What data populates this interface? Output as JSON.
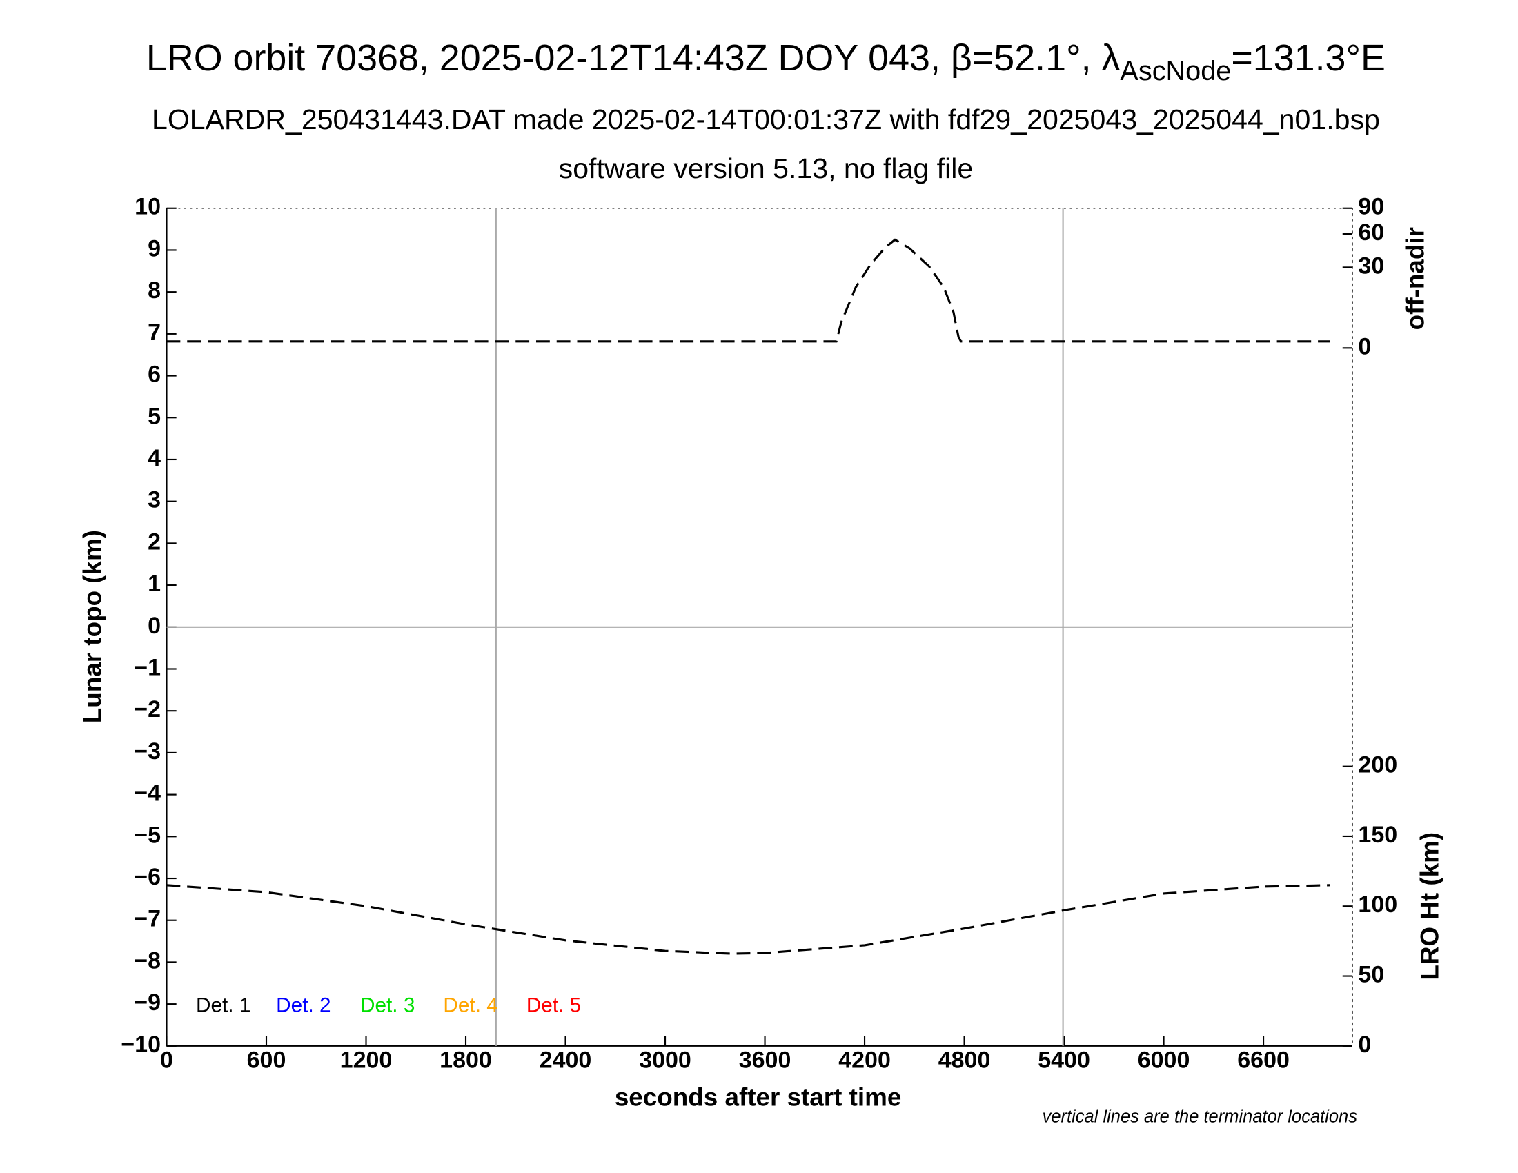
{
  "chart_data": {
    "type": "line",
    "title": {
      "main": "LRO orbit 70368, 2025-02-12T14:43Z DOY 043, β=52.1°, λ",
      "sub": "AscNode",
      "tail": "=131.3°E"
    },
    "subtitle": "LOLARDR_250431443.DAT made 2025-02-14T00:01:37Z with fdf29_2025043_2025044_n01.bsp",
    "subtitle2": "software version 5.13, no flag file",
    "xlabel": "seconds after start time",
    "xlim": [
      0,
      7135
    ],
    "xticks": [
      0,
      600,
      1200,
      1800,
      2400,
      3000,
      3600,
      4200,
      4800,
      5400,
      6000,
      6600
    ],
    "ylabel": "Lunar topo (km)",
    "ylim": [
      -10,
      10
    ],
    "yticks": [
      {
        "value": -10,
        "label": "−10"
      },
      {
        "value": -9,
        "label": "−9"
      },
      {
        "value": -8,
        "label": "−8"
      },
      {
        "value": -7,
        "label": "−7"
      },
      {
        "value": -6,
        "label": "−6"
      },
      {
        "value": -5,
        "label": "−5"
      },
      {
        "value": -4,
        "label": "−4"
      },
      {
        "value": -3,
        "label": "−3"
      },
      {
        "value": -2,
        "label": "−2"
      },
      {
        "value": -1,
        "label": "−1"
      },
      0,
      1,
      2,
      3,
      4,
      5,
      6,
      7,
      8,
      9,
      10
    ],
    "y2label": "off-nadir",
    "y2lim": [
      0,
      90
    ],
    "y2ticks": [
      0,
      30,
      60,
      90
    ],
    "y2scale": "sqrt",
    "y3label": "LRO Ht (km)",
    "y3lim": [
      0,
      200
    ],
    "y3ticks": [
      0,
      50,
      100,
      150,
      200
    ],
    "terminators": [
      1982,
      5394
    ],
    "series": [
      {
        "name": "off-nadir",
        "axis": "y2",
        "color": "#000000",
        "x": [
          0,
          1000,
          2000,
          3000,
          4000,
          4030,
          4060,
          4147,
          4235,
          4324,
          4383,
          4471,
          4588,
          4676,
          4735,
          4765,
          4780,
          5400,
          6000,
          7000
        ],
        "values": [
          0.2,
          0.2,
          0.2,
          0.2,
          0.2,
          0.2,
          3.1,
          17,
          32,
          46.5,
          54,
          45.7,
          30.7,
          17,
          5.9,
          0.55,
          0.2,
          0.2,
          0.2,
          0.2
        ]
      },
      {
        "name": "LRO Ht (km)",
        "axis": "y3",
        "color": "#000000",
        "x": [
          0,
          600,
          1200,
          1800,
          2400,
          3000,
          3400,
          3600,
          4200,
          4800,
          5400,
          6000,
          6600,
          7000
        ],
        "values": [
          115,
          110,
          100,
          87,
          75.5,
          68,
          66,
          66.5,
          72,
          84,
          97,
          109,
          114,
          115
        ]
      }
    ],
    "detectors": [
      {
        "name": "Det. 1",
        "color": "#000000"
      },
      {
        "name": "Det. 2",
        "color": "#0000ff"
      },
      {
        "name": "Det. 3",
        "color": "#00e000"
      },
      {
        "name": "Det. 4",
        "color": "#ffa500"
      },
      {
        "name": "Det. 5",
        "color": "#ff0000"
      }
    ],
    "note": "vertical lines are the terminator locations"
  }
}
